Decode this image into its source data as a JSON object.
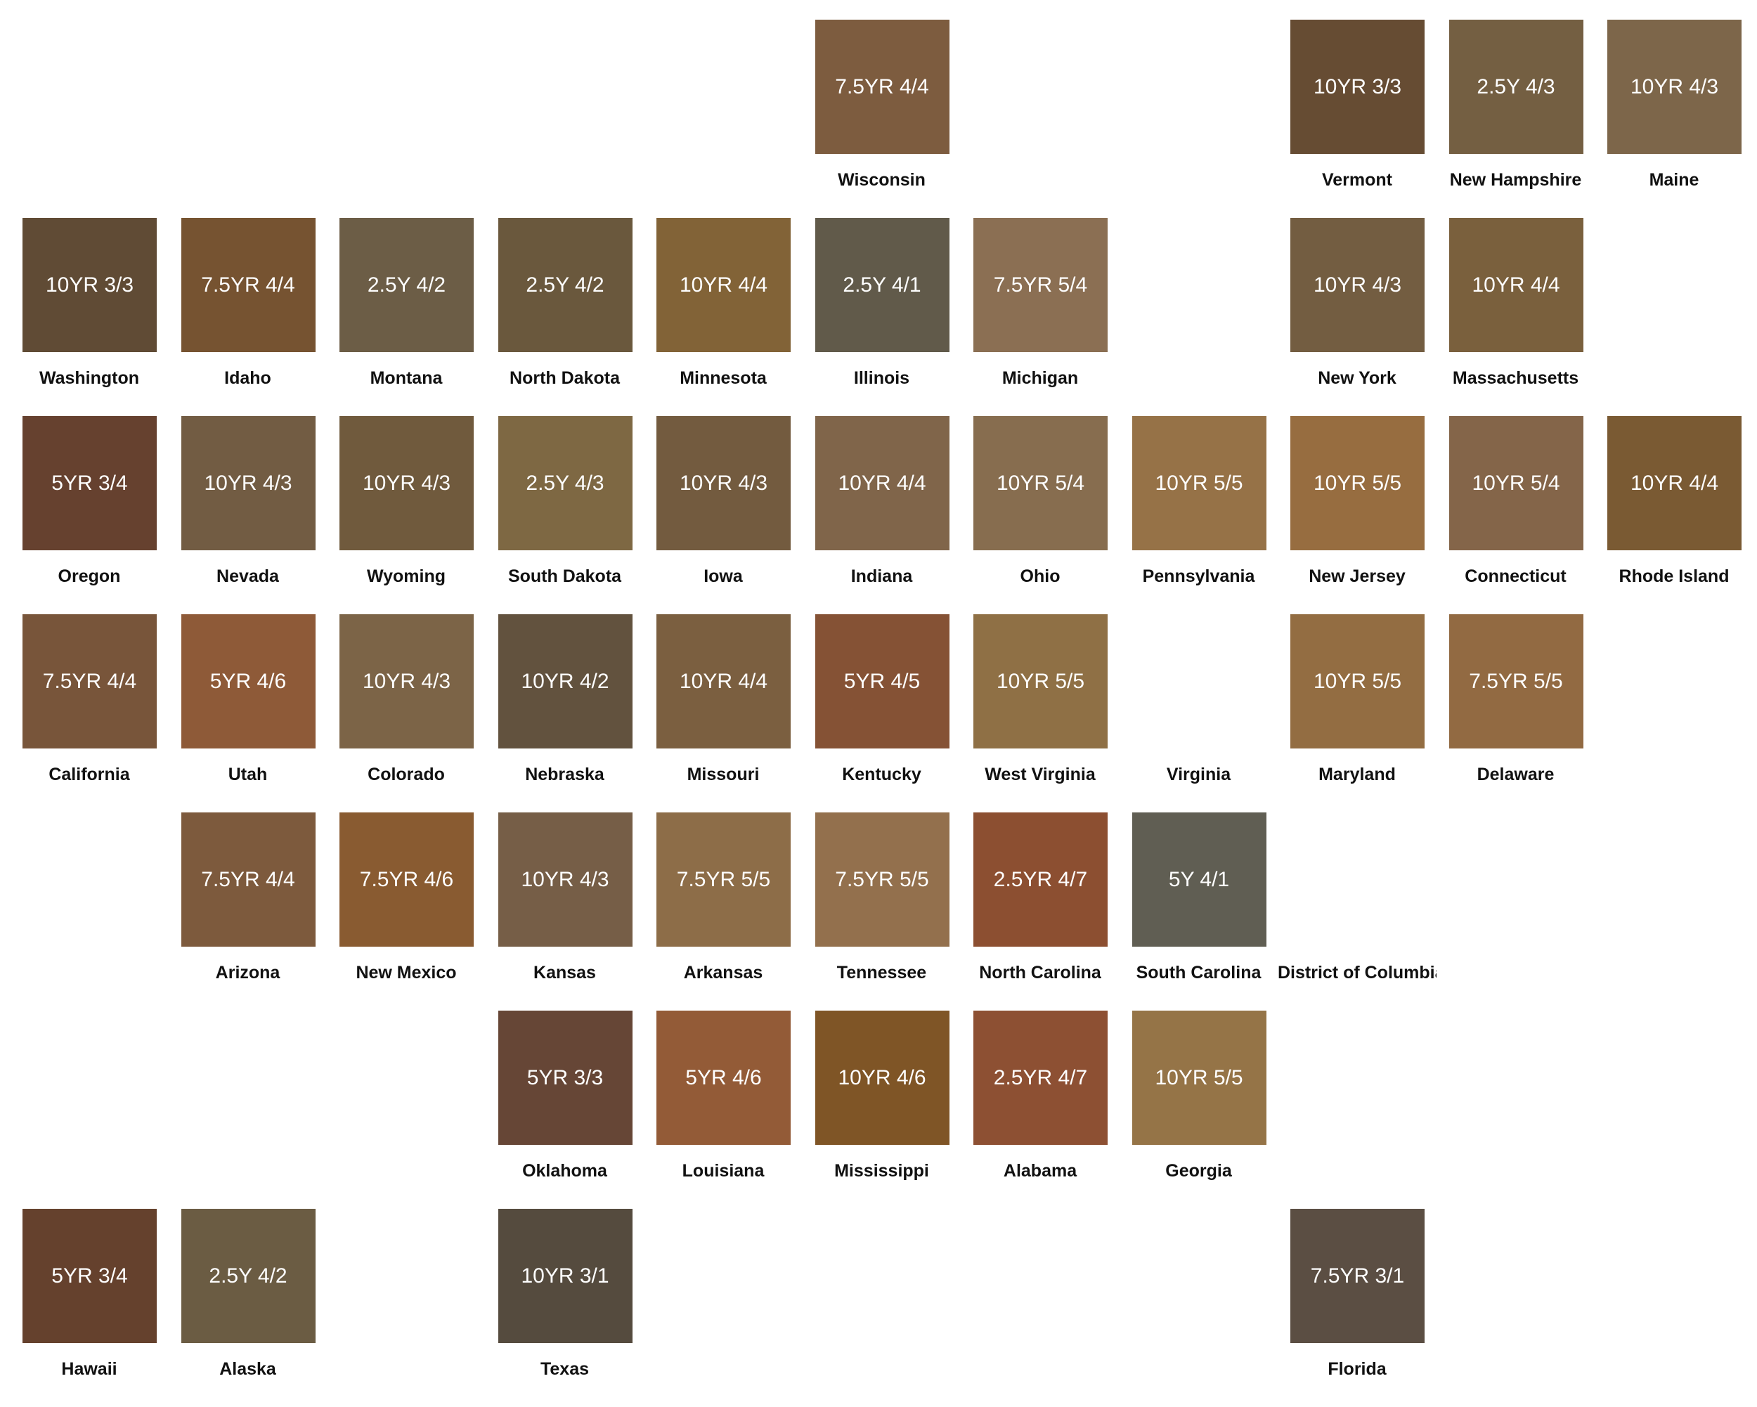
{
  "tiles": [
    {
      "state": "Wisconsin",
      "munsell": "7.5YR 4/4",
      "color": "#7d5c3f",
      "row": 0,
      "col": 5
    },
    {
      "state": "Vermont",
      "munsell": "10YR 3/3",
      "color": "#664c33",
      "row": 0,
      "col": 8
    },
    {
      "state": "New Hampshire",
      "munsell": "2.5Y 4/3",
      "color": "#745f42",
      "row": 0,
      "col": 9
    },
    {
      "state": "Maine",
      "munsell": "10YR 4/3",
      "color": "#7d664a",
      "row": 0,
      "col": 10
    },
    {
      "state": "Washington",
      "munsell": "10YR 3/3",
      "color": "#604b35",
      "row": 1,
      "col": 0
    },
    {
      "state": "Idaho",
      "munsell": "7.5YR 4/4",
      "color": "#765331",
      "row": 1,
      "col": 1
    },
    {
      "state": "Montana",
      "munsell": "2.5Y 4/2",
      "color": "#6c5d46",
      "row": 1,
      "col": 2
    },
    {
      "state": "North Dakota",
      "munsell": "2.5Y 4/2",
      "color": "#6a583d",
      "row": 1,
      "col": 3
    },
    {
      "state": "Minnesota",
      "munsell": "10YR 4/4",
      "color": "#826337",
      "row": 1,
      "col": 4
    },
    {
      "state": "Illinois",
      "munsell": "2.5Y 4/1",
      "color": "#615a4a",
      "row": 1,
      "col": 5
    },
    {
      "state": "Michigan",
      "munsell": "7.5YR 5/4",
      "color": "#8b6f53",
      "row": 1,
      "col": 6
    },
    {
      "state": "New York",
      "munsell": "10YR 4/3",
      "color": "#735d41",
      "row": 1,
      "col": 8
    },
    {
      "state": "Massachusetts",
      "munsell": "10YR 4/4",
      "color": "#7a603d",
      "row": 1,
      "col": 9
    },
    {
      "state": "Oregon",
      "munsell": "5YR 3/4",
      "color": "#66412f",
      "row": 2,
      "col": 0
    },
    {
      "state": "Nevada",
      "munsell": "10YR 4/3",
      "color": "#725c43",
      "row": 2,
      "col": 1
    },
    {
      "state": "Wyoming",
      "munsell": "10YR 4/3",
      "color": "#705a3d",
      "row": 2,
      "col": 2
    },
    {
      "state": "South Dakota",
      "munsell": "2.5Y 4/3",
      "color": "#7e6843",
      "row": 2,
      "col": 3
    },
    {
      "state": "Iowa",
      "munsell": "10YR 4/3",
      "color": "#735b3f",
      "row": 2,
      "col": 4
    },
    {
      "state": "Indiana",
      "munsell": "10YR 4/4",
      "color": "#80654a",
      "row": 2,
      "col": 5
    },
    {
      "state": "Ohio",
      "munsell": "10YR 5/4",
      "color": "#876d4f",
      "row": 2,
      "col": 6
    },
    {
      "state": "Pennsylvania",
      "munsell": "10YR 5/5",
      "color": "#967247",
      "row": 2,
      "col": 7
    },
    {
      "state": "New Jersey",
      "munsell": "10YR 5/5",
      "color": "#976d40",
      "row": 2,
      "col": 8
    },
    {
      "state": "Connecticut",
      "munsell": "10YR 5/4",
      "color": "#846549",
      "row": 2,
      "col": 9
    },
    {
      "state": "Rhode Island",
      "munsell": "10YR 4/4",
      "color": "#7a5a33",
      "row": 2,
      "col": 10
    },
    {
      "state": "California",
      "munsell": "7.5YR 4/4",
      "color": "#78553a",
      "row": 3,
      "col": 0
    },
    {
      "state": "Utah",
      "munsell": "5YR 4/6",
      "color": "#8e5a38",
      "row": 3,
      "col": 1
    },
    {
      "state": "Colorado",
      "munsell": "10YR 4/3",
      "color": "#7c6447",
      "row": 3,
      "col": 2
    },
    {
      "state": "Nebraska",
      "munsell": "10YR 4/2",
      "color": "#62523e",
      "row": 3,
      "col": 3
    },
    {
      "state": "Missouri",
      "munsell": "10YR 4/4",
      "color": "#7b5f40",
      "row": 3,
      "col": 4
    },
    {
      "state": "Kentucky",
      "munsell": "5YR 4/5",
      "color": "#855235",
      "row": 3,
      "col": 5
    },
    {
      "state": "West Virginia",
      "munsell": "10YR 5/5",
      "color": "#8f7045",
      "row": 3,
      "col": 6
    },
    {
      "state": "Virginia",
      "munsell": "",
      "color": "#ffffff",
      "row": 3,
      "col": 7
    },
    {
      "state": "Maryland",
      "munsell": "10YR 5/5",
      "color": "#936d42",
      "row": 3,
      "col": 8
    },
    {
      "state": "Delaware",
      "munsell": "7.5YR 5/5",
      "color": "#926a42",
      "row": 3,
      "col": 9
    },
    {
      "state": "Arizona",
      "munsell": "7.5YR 4/4",
      "color": "#7d5a3d",
      "row": 4,
      "col": 1
    },
    {
      "state": "New Mexico",
      "munsell": "7.5YR 4/6",
      "color": "#895b31",
      "row": 4,
      "col": 2
    },
    {
      "state": "Kansas",
      "munsell": "10YR 4/3",
      "color": "#765e47",
      "row": 4,
      "col": 3
    },
    {
      "state": "Arkansas",
      "munsell": "7.5YR 5/5",
      "color": "#8d6d48",
      "row": 4,
      "col": 4
    },
    {
      "state": "Tennessee",
      "munsell": "7.5YR 5/5",
      "color": "#93704d",
      "row": 4,
      "col": 5
    },
    {
      "state": "North Carolina",
      "munsell": "2.5YR 4/7",
      "color": "#8c4f31",
      "row": 4,
      "col": 6
    },
    {
      "state": "South Carolina",
      "munsell": "5Y 4/1",
      "color": "#605e53",
      "row": 4,
      "col": 7
    },
    {
      "state": "District of Columbia",
      "munsell": "",
      "color": "#ffffff",
      "row": 4,
      "col": 8
    },
    {
      "state": "Oklahoma",
      "munsell": "5YR 3/3",
      "color": "#664636",
      "row": 5,
      "col": 3
    },
    {
      "state": "Louisiana",
      "munsell": "5YR 4/6",
      "color": "#935b37",
      "row": 5,
      "col": 4
    },
    {
      "state": "Mississippi",
      "munsell": "10YR 4/6",
      "color": "#7f5526",
      "row": 5,
      "col": 5
    },
    {
      "state": "Alabama",
      "munsell": "2.5YR 4/7",
      "color": "#8d5033",
      "row": 5,
      "col": 6
    },
    {
      "state": "Georgia",
      "munsell": "10YR 5/5",
      "color": "#957447",
      "row": 5,
      "col": 7
    },
    {
      "state": "Hawaii",
      "munsell": "5YR 3/4",
      "color": "#65412d",
      "row": 6,
      "col": 0
    },
    {
      "state": "Alaska",
      "munsell": "2.5Y 4/2",
      "color": "#6b5c43",
      "row": 6,
      "col": 1
    },
    {
      "state": "Texas",
      "munsell": "10YR 3/1",
      "color": "#554b3e",
      "row": 6,
      "col": 3
    },
    {
      "state": "Florida",
      "munsell": "7.5YR 3/1",
      "color": "#5b4e43",
      "row": 6,
      "col": 8
    }
  ]
}
